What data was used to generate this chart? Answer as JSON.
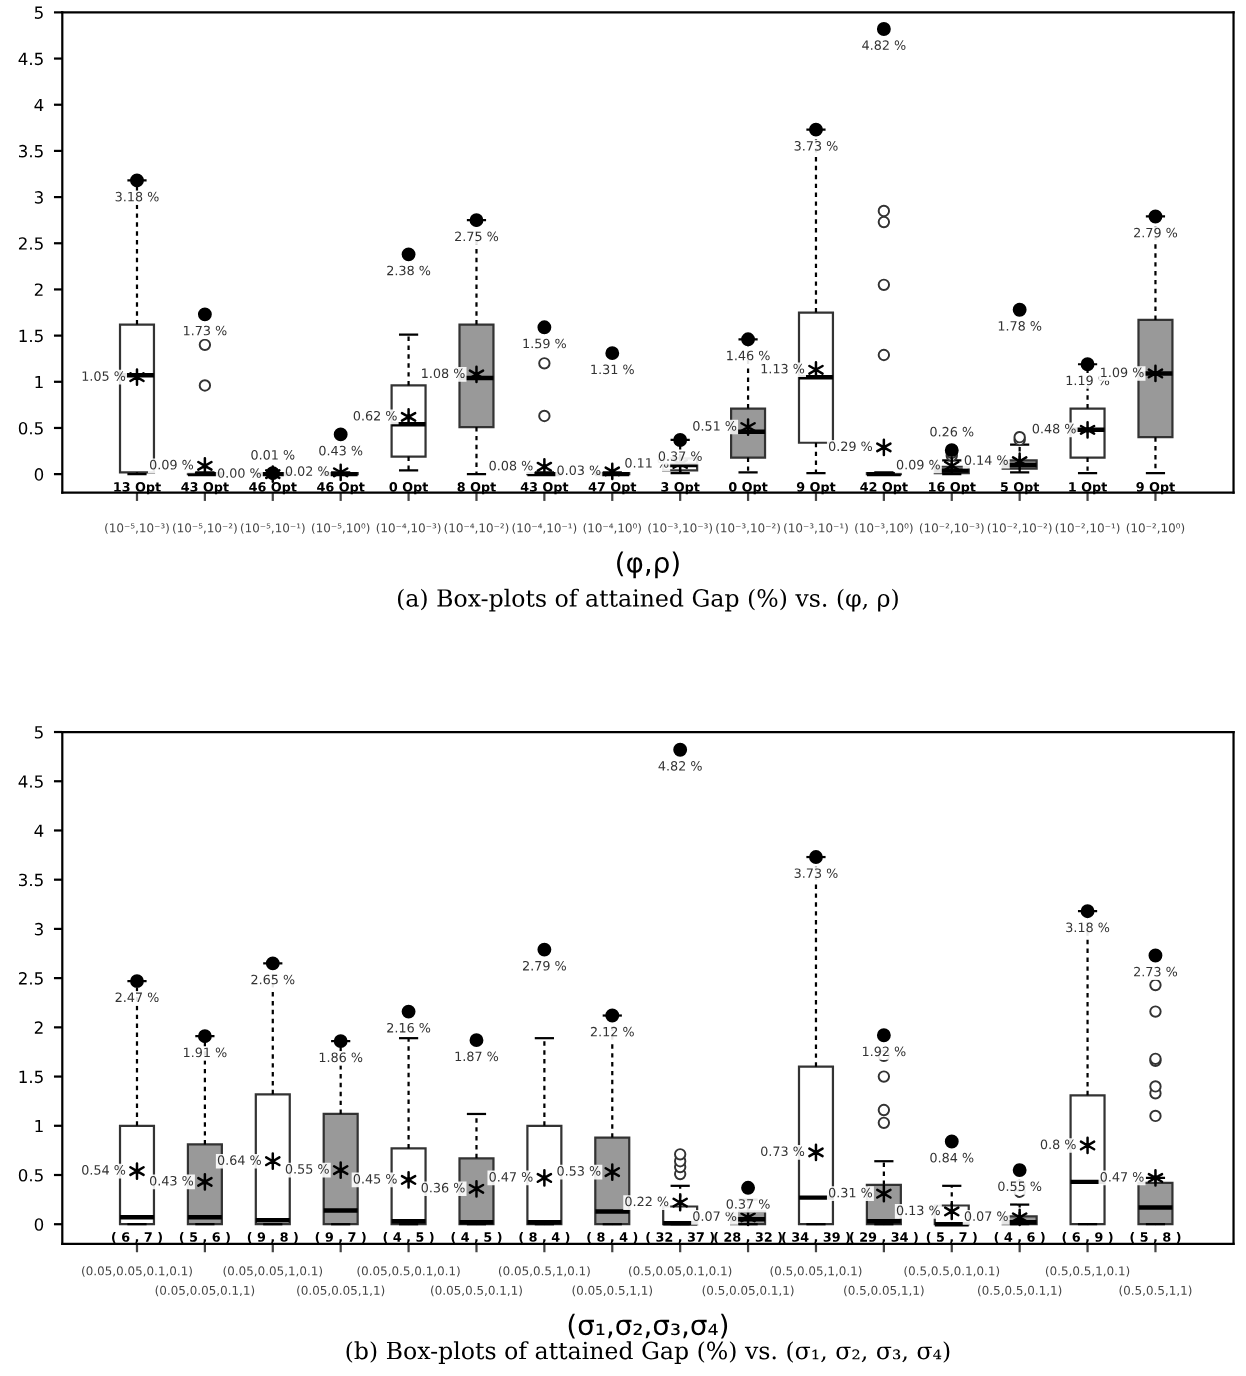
{
  "chart_data": [
    {
      "type": "box",
      "xlabel": "(φ,ρ)",
      "ylim": [
        -0.2,
        5.0
      ],
      "yticks": [
        0,
        0.5,
        1,
        1.5,
        2,
        2.5,
        3,
        3.5,
        4,
        4.5,
        5
      ],
      "categories": [
        "(10⁻⁵,10⁻³)",
        "(10⁻⁵,10⁻²)",
        "(10⁻⁵,10⁻¹)",
        "(10⁻⁵,10⁰)",
        "(10⁻⁴,10⁻³)",
        "(10⁻⁴,10⁻²)",
        "(10⁻⁴,10⁻¹)",
        "(10⁻⁴,10⁰)",
        "(10⁻³,10⁻³)",
        "(10⁻³,10⁻²)",
        "(10⁻³,10⁻¹)",
        "(10⁻³,10⁰)",
        "(10⁻²,10⁻³)",
        "(10⁻²,10⁻²)",
        "(10⁻²,10⁻¹)",
        "(10⁻²,10⁰)"
      ],
      "colors": [
        "#ffffff",
        "#ffffff",
        "#ffffff",
        "#ffffff",
        "#ffffff",
        "#999999",
        "#ffffff",
        "#999999",
        "#ffffff",
        "#999999",
        "#ffffff",
        "#999999",
        "#ffffff",
        "#999999",
        "#ffffff",
        "#999999"
      ],
      "boxes": [
        {
          "low": 0,
          "q1": 0.02,
          "median": 1.07,
          "q3": 1.62,
          "high": 3.18,
          "mean": 1.05
        },
        {
          "low": 0,
          "q1": 0,
          "median": 0,
          "q3": 0.01,
          "high": 0.02,
          "mean": 0.09,
          "outliers": [
            0.96,
            1.4,
            1.73
          ]
        },
        {
          "low": 0,
          "q1": 0,
          "median": 0,
          "q3": 0.01,
          "high": 0.01,
          "mean": 0.0
        },
        {
          "low": 0,
          "q1": 0,
          "median": 0,
          "q3": 0.01,
          "high": 0.02,
          "mean": 0.02,
          "outliers": [
            0.43
          ]
        },
        {
          "low": 0.04,
          "q1": 0.19,
          "median": 0.54,
          "q3": 0.96,
          "high": 1.51,
          "mean": 0.62,
          "outliers": [
            2.38
          ]
        },
        {
          "low": 0,
          "q1": 0.51,
          "median": 1.04,
          "q3": 1.62,
          "high": 2.75,
          "mean": 1.08
        },
        {
          "low": 0,
          "q1": 0,
          "median": 0,
          "q3": 0.01,
          "high": 0.02,
          "mean": 0.08,
          "outliers": [
            0.63,
            1.2,
            1.59
          ]
        },
        {
          "low": 0,
          "q1": 0,
          "median": 0,
          "q3": 0.01,
          "high": 0.02,
          "mean": 0.03,
          "outliers": [
            1.31
          ]
        },
        {
          "low": 0.01,
          "q1": 0.04,
          "median": 0.1,
          "q3": 0.17,
          "high": 0.37,
          "mean": 0.11
        },
        {
          "low": 0.02,
          "q1": 0.18,
          "median": 0.46,
          "q3": 0.71,
          "high": 1.46,
          "mean": 0.51
        },
        {
          "low": 0.01,
          "q1": 0.34,
          "median": 1.05,
          "q3": 1.75,
          "high": 3.73,
          "mean": 1.13
        },
        {
          "low": 0,
          "q1": 0,
          "median": 0,
          "q3": 0.01,
          "high": 0.02,
          "mean": 0.29,
          "outliers": [
            1.29,
            2.05,
            2.73,
            2.85,
            4.82
          ]
        },
        {
          "low": 0,
          "q1": 0.01,
          "median": 0.04,
          "q3": 0.08,
          "high": 0.15,
          "mean": 0.09,
          "outliers": [
            0.2,
            0.23,
            0.26
          ]
        },
        {
          "low": 0.02,
          "q1": 0.06,
          "median": 0.1,
          "q3": 0.15,
          "high": 0.32,
          "mean": 0.14,
          "outliers": [
            0.37,
            0.4,
            1.78
          ]
        },
        {
          "low": 0.01,
          "q1": 0.18,
          "median": 0.48,
          "q3": 0.71,
          "high": 1.19,
          "mean": 0.48
        },
        {
          "low": 0.01,
          "q1": 0.4,
          "median": 1.09,
          "q3": 1.67,
          "high": 2.79,
          "mean": 1.09
        }
      ],
      "annotations": [
        "(a) Box-plots of attained Gap (%) vs. (φ, ρ)",
        "13 Opt",
        "1.05 %",
        "3.18 %",
        "43 Opt",
        "0.09 %",
        "1.73 %",
        "46 Opt",
        "0.00 %",
        "0.01 %",
        "46 Opt",
        "0.02 %",
        "0.43 %",
        "0 Opt",
        "0.62 %",
        "2.38 %",
        "8 Opt",
        "1.08 %",
        "2.75 %",
        "43 Opt",
        "0.08 %",
        "1.59 %",
        "47 Opt",
        "0.03 %",
        "1.31 %",
        "3 Opt",
        "0.11 %",
        "0.37 %",
        "0 Opt",
        "0.51 %",
        "1.46 %",
        "9 Opt",
        "1.13 %",
        "3.73 %",
        "42 Opt",
        "0.29 %",
        "4.82 %",
        "16 Opt",
        "0.09 %",
        "0.26 %",
        "5 Opt",
        "0.14 %",
        "1.78 %",
        "1 Opt",
        "0.48 %",
        "1.19 %",
        "9 Opt",
        "1.09 %",
        "2.79 %"
      ]
    },
    {
      "type": "box",
      "xlabel": "(σ₁,σ₂,σ₃,σ₄)",
      "ylim": [
        -0.2,
        5.0
      ],
      "yticks": [
        0,
        0.5,
        1,
        1.5,
        2,
        2.5,
        3,
        3.5,
        4,
        4.5,
        5
      ],
      "categories": [
        "(0.05,0.05,0.1,0.1)",
        "(0.05,0.05,0.1,1)",
        "(0.05,0.05,1,0.1)",
        "(0.05,0.05,1,1)",
        "(0.05,0.5,0.1,0.1)",
        "(0.05,0.5,0.1,1)",
        "(0.05,0.5,1,0.1)",
        "(0.05,0.5,1,1)",
        "(0.5,0.05,0.1,0.1)",
        "(0.5,0.05,0.1,1)",
        "(0.5,0.05,1,0.1)",
        "(0.5,0.05,1,1)",
        "(0.5,0.5,0.1,0.1)",
        "(0.5,0.5,0.1,1)",
        "(0.5,0.5,1,0.1)",
        "(0.5,0.5,1,1)"
      ],
      "colors": [
        "#ffffff",
        "#999999",
        "#ffffff",
        "#999999",
        "#ffffff",
        "#999999",
        "#ffffff",
        "#999999",
        "#ffffff",
        "#999999",
        "#ffffff",
        "#999999",
        "#ffffff",
        "#999999",
        "#ffffff",
        "#999999"
      ],
      "boxes": [
        {
          "low": 0,
          "q1": 0,
          "median": 0.07,
          "q3": 1.0,
          "high": 2.47,
          "mean": 0.54
        },
        {
          "low": 0,
          "q1": 0,
          "median": 0.07,
          "q3": 0.81,
          "high": 1.91,
          "mean": 0.43
        },
        {
          "low": 0,
          "q1": 0,
          "median": 0.04,
          "q3": 1.32,
          "high": 2.65,
          "mean": 0.64
        },
        {
          "low": 0,
          "q1": 0,
          "median": 0.14,
          "q3": 1.12,
          "high": 1.86,
          "mean": 0.55
        },
        {
          "low": 0,
          "q1": 0,
          "median": 0.03,
          "q3": 0.77,
          "high": 1.89,
          "mean": 0.45,
          "outliers": [
            2.16
          ]
        },
        {
          "low": 0,
          "q1": 0,
          "median": 0.02,
          "q3": 0.67,
          "high": 1.12,
          "mean": 0.36,
          "outliers": [
            1.87
          ]
        },
        {
          "low": 0,
          "q1": 0,
          "median": 0.02,
          "q3": 1.0,
          "high": 1.89,
          "mean": 0.47,
          "outliers": [
            2.79
          ]
        },
        {
          "low": 0,
          "q1": 0,
          "median": 0.13,
          "q3": 0.88,
          "high": 2.12,
          "mean": 0.53
        },
        {
          "low": 0,
          "q1": 0,
          "median": 0.01,
          "q3": 0.18,
          "high": 0.39,
          "mean": 0.22,
          "outliers": [
            0.51,
            0.58,
            0.64,
            0.71,
            4.82
          ]
        },
        {
          "low": 0,
          "q1": 0,
          "median": 0.05,
          "q3": 0.13,
          "high": 0.25,
          "mean": 0.07,
          "outliers": [
            0.37
          ]
        },
        {
          "low": 0,
          "q1": 0,
          "median": 0.27,
          "q3": 1.6,
          "high": 3.73,
          "mean": 0.73
        },
        {
          "low": 0,
          "q1": 0,
          "median": 0.03,
          "q3": 0.4,
          "high": 0.64,
          "mean": 0.31,
          "outliers": [
            1.03,
            1.16,
            1.5,
            1.71,
            1.92
          ]
        },
        {
          "low": 0,
          "q1": 0,
          "median": 0.0,
          "q3": 0.19,
          "high": 0.39,
          "mean": 0.13,
          "outliers": [
            0.84
          ]
        },
        {
          "low": 0,
          "q1": 0,
          "median": 0.02,
          "q3": 0.08,
          "high": 0.2,
          "mean": 0.07,
          "outliers": [
            0.33,
            0.39,
            0.55
          ]
        },
        {
          "low": 0,
          "q1": 0,
          "median": 0.43,
          "q3": 1.31,
          "high": 3.18,
          "mean": 0.8
        },
        {
          "low": 0,
          "q1": 0,
          "median": 0.17,
          "q3": 0.42,
          "high": 0.47,
          "mean": 0.47,
          "outliers": [
            1.1,
            1.33,
            1.4,
            1.66,
            1.68,
            2.16,
            2.43,
            2.73
          ]
        }
      ],
      "annotations": [
        "(b) Box-plots of attained Gap (%) vs. (σ₁, σ₂, σ₃, σ₄)",
        "( 6 , 7 )",
        "0.54 %",
        "2.47 %",
        "( 5 , 6 )",
        "0.43 %",
        "1.91 %",
        "( 9 , 8 )",
        "0.64 %",
        "2.65 %",
        "( 9 , 7 )",
        "0.55 %",
        "1.86 %",
        "( 4 , 5 )",
        "0.45 %",
        "2.16 %",
        "( 4 , 5 )",
        "0.36 %",
        "1.87 %",
        "( 8 , 4 )",
        "0.47 %",
        "2.79 %",
        "( 8 , 4 )",
        "0.53 %",
        "2.12 %",
        "( 32 , 37 )",
        "0.22 %",
        "4.82 %",
        "( 28 , 32 )",
        "0.07 %",
        "0.37 %",
        "( 34 , 39 )",
        "0.73 %",
        "3.73 %",
        "( 29 , 34 )",
        "0.31 %",
        "1.92 %",
        "( 5 , 7 )",
        "0.13 %",
        "0.84 %",
        "( 4 , 6 )",
        "0.07 %",
        "0.55 %",
        "( 6 , 9 )",
        "0.8 %",
        "3.18 %",
        "( 5 , 8 )",
        "0.47 %",
        "2.73 %"
      ]
    }
  ]
}
